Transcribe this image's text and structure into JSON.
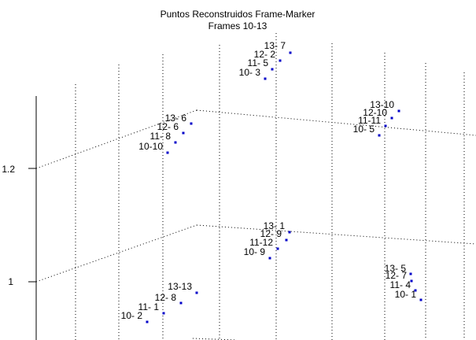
{
  "chart_data": {
    "type": "scatter",
    "title": "Puntos Reconstruidos Frame-Marker",
    "subtitle": "Frames 10-13",
    "projection": "3d",
    "grid": true,
    "z_ticks": [
      "1.2",
      "1"
    ],
    "marker_color": "#0000c8",
    "groups": [
      {
        "points": [
          {
            "label": "13- 7"
          },
          {
            "label": "12- 2"
          },
          {
            "label": "11- 5"
          },
          {
            "label": "10- 3"
          }
        ]
      },
      {
        "points": [
          {
            "label": "13- 6"
          },
          {
            "label": "12- 6"
          },
          {
            "label": "11- 8"
          },
          {
            "label": "10-10"
          }
        ]
      },
      {
        "points": [
          {
            "label": "13-10"
          },
          {
            "label": "12-10"
          },
          {
            "label": "11-11"
          },
          {
            "label": "10- 5"
          }
        ]
      },
      {
        "points": [
          {
            "label": "13- 1"
          },
          {
            "label": "12- 9"
          },
          {
            "label": "11-12"
          },
          {
            "label": "10- 9"
          }
        ]
      },
      {
        "points": [
          {
            "label": "13- 5"
          },
          {
            "label": "12- 7"
          },
          {
            "label": "11- 4"
          },
          {
            "label": "10- 1"
          }
        ]
      },
      {
        "points": [
          {
            "label": "13-13"
          },
          {
            "label": "12- 8"
          },
          {
            "label": "11- 1"
          },
          {
            "label": "10- 2"
          }
        ]
      }
    ]
  }
}
